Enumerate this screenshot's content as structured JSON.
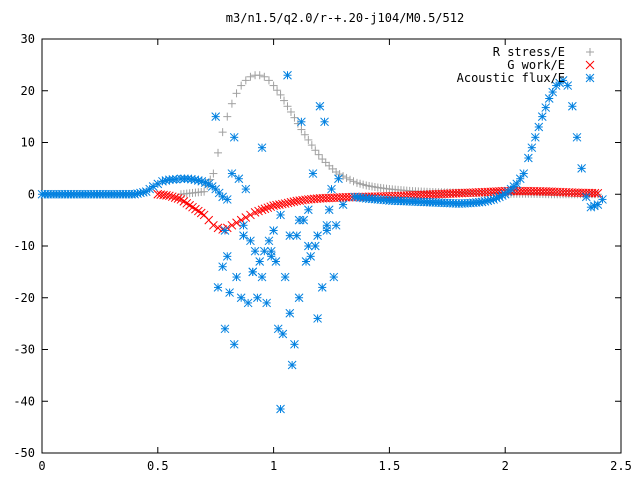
{
  "chart_data": {
    "type": "scatter",
    "title": "m3/n1.5/q2.0/r-+.20-j104/M0.5/512",
    "xlabel": "",
    "ylabel": "",
    "xlim": [
      0,
      2.5
    ],
    "ylim": [
      -50,
      30
    ],
    "xticks": [
      "0",
      "0.5",
      "1",
      "1.5",
      "2",
      "2.5"
    ],
    "yticks": [
      "30",
      "20",
      "10",
      "0",
      "-10",
      "-20",
      "-30",
      "-40",
      "-50"
    ],
    "grid": false,
    "legend_position": "top-right",
    "series": [
      {
        "name": "R stress/E",
        "marker": "plus",
        "color": "#a0a0a0",
        "x": [
          0.6,
          0.7,
          0.74,
          0.76,
          0.78,
          0.8,
          0.82,
          0.84,
          0.86,
          0.88,
          0.9,
          0.92,
          0.94,
          0.96,
          0.98,
          1.0,
          1.03,
          1.06,
          1.09,
          1.12,
          1.15,
          1.18,
          1.21,
          1.24,
          1.27,
          1.3,
          1.33,
          1.36,
          1.4,
          1.45,
          1.5,
          1.55,
          1.6,
          1.7,
          1.8,
          1.9,
          2.0,
          2.1,
          2.2,
          2.3,
          2.4
        ],
        "y": [
          0.0,
          0.5,
          4.0,
          8.0,
          12.0,
          15.0,
          17.5,
          19.5,
          21.0,
          22.0,
          22.7,
          23.0,
          23.0,
          22.7,
          22.0,
          21.0,
          19.2,
          17.0,
          14.8,
          12.5,
          10.5,
          8.5,
          6.8,
          5.5,
          4.3,
          3.5,
          2.8,
          2.2,
          1.7,
          1.3,
          1.0,
          0.8,
          0.6,
          0.4,
          0.3,
          0.2,
          0.1,
          0.1,
          0.0,
          0.0,
          0.0
        ]
      },
      {
        "name": "G work/E",
        "marker": "cross",
        "color": "#ff0000",
        "x": [
          0.5,
          0.55,
          0.6,
          0.65,
          0.7,
          0.72,
          0.74,
          0.76,
          0.78,
          0.8,
          0.82,
          0.84,
          0.86,
          0.88,
          0.9,
          0.92,
          0.95,
          1.0,
          1.05,
          1.1,
          1.15,
          1.2,
          1.3,
          1.4,
          1.5,
          1.6,
          1.7,
          1.8,
          1.9,
          2.0,
          2.1,
          2.2,
          2.3,
          2.4
        ],
        "y": [
          0.0,
          -0.3,
          -1.0,
          -2.5,
          -4.0,
          -5.0,
          -6.0,
          -6.5,
          -6.8,
          -6.5,
          -6.0,
          -5.5,
          -5.0,
          -4.5,
          -4.0,
          -3.5,
          -3.0,
          -2.2,
          -1.8,
          -1.3,
          -1.0,
          -0.8,
          -0.6,
          -0.5,
          -0.4,
          -0.2,
          0.0,
          0.2,
          0.4,
          0.6,
          0.6,
          0.5,
          0.3,
          0.2
        ]
      },
      {
        "name": "Acoustic flux/E",
        "marker": "star",
        "color": "#0080e0",
        "x": [
          0.0,
          0.1,
          0.2,
          0.3,
          0.4,
          0.45,
          0.48,
          0.5,
          0.52,
          0.55,
          0.58,
          0.6,
          0.63,
          0.66,
          0.69,
          0.72,
          0.75,
          0.78,
          0.8,
          1.35,
          1.4,
          1.45,
          1.5,
          1.6,
          1.7,
          1.8,
          1.85,
          1.9,
          1.95,
          2.0,
          2.05,
          2.08,
          2.1,
          2.13,
          2.16,
          2.19,
          2.22,
          2.25,
          2.27,
          2.29,
          2.31,
          2.33,
          2.35,
          2.37,
          2.4,
          2.42,
          0.75,
          0.76,
          0.78,
          0.79,
          0.8,
          0.81,
          0.82,
          0.83,
          0.84,
          0.85,
          0.86,
          0.87,
          0.88,
          0.89,
          0.9,
          0.91,
          0.92,
          0.93,
          0.94,
          0.95,
          0.96,
          0.97,
          0.98,
          0.99,
          1.0,
          1.01,
          1.02,
          1.03,
          1.04,
          1.05,
          1.06,
          1.07,
          1.08,
          1.09,
          1.1,
          1.11,
          1.12,
          1.13,
          1.14,
          1.15,
          1.16,
          1.17,
          1.18,
          1.19,
          1.2,
          1.21,
          1.22,
          1.23,
          1.24,
          1.25,
          1.26,
          1.27,
          1.28,
          1.3,
          0.79,
          0.83,
          0.87,
          0.91,
          0.95,
          0.99,
          1.03,
          1.07,
          1.11,
          1.15,
          1.19,
          1.23
        ],
        "y": [
          0.0,
          0.0,
          0.0,
          0.0,
          0.0,
          0.5,
          1.5,
          2.0,
          2.5,
          2.8,
          2.9,
          3.0,
          3.0,
          2.8,
          2.5,
          2.0,
          1.0,
          -0.5,
          -1.0,
          -0.5,
          -0.8,
          -1.0,
          -1.2,
          -1.4,
          -1.6,
          -1.8,
          -1.7,
          -1.5,
          -1.0,
          0.0,
          2.0,
          4.0,
          7.0,
          11.0,
          15.0,
          18.5,
          21.0,
          22.0,
          21.0,
          17.0,
          11.0,
          5.0,
          -0.5,
          -2.5,
          -2.0,
          -1.0,
          15.0,
          -18.0,
          -14.0,
          -26.0,
          -12.0,
          -19.0,
          4.0,
          -29.0,
          -16.0,
          3.0,
          -20.0,
          -6.0,
          1.0,
          -21.0,
          -9.0,
          -15.0,
          -11.0,
          -20.0,
          -13.0,
          -16.0,
          -11.0,
          -21.0,
          -9.0,
          -12.0,
          -7.0,
          -13.0,
          -26.0,
          -41.5,
          -27.0,
          -16.0,
          23.0,
          -8.0,
          -33.0,
          -29.0,
          -8.0,
          -20.0,
          14.0,
          -5.0,
          -13.0,
          -3.0,
          -12.0,
          4.0,
          -10.0,
          -24.0,
          17.0,
          -18.0,
          14.0,
          -7.0,
          -3.0,
          1.0,
          -16.0,
          -6.0,
          3.0,
          -2.0,
          -7.0,
          11.0,
          -8.0,
          -15.0,
          9.0,
          -11.0,
          -4.0,
          -23.0,
          -5.0,
          -10.0,
          -8.0,
          -6.0
        ]
      }
    ]
  }
}
